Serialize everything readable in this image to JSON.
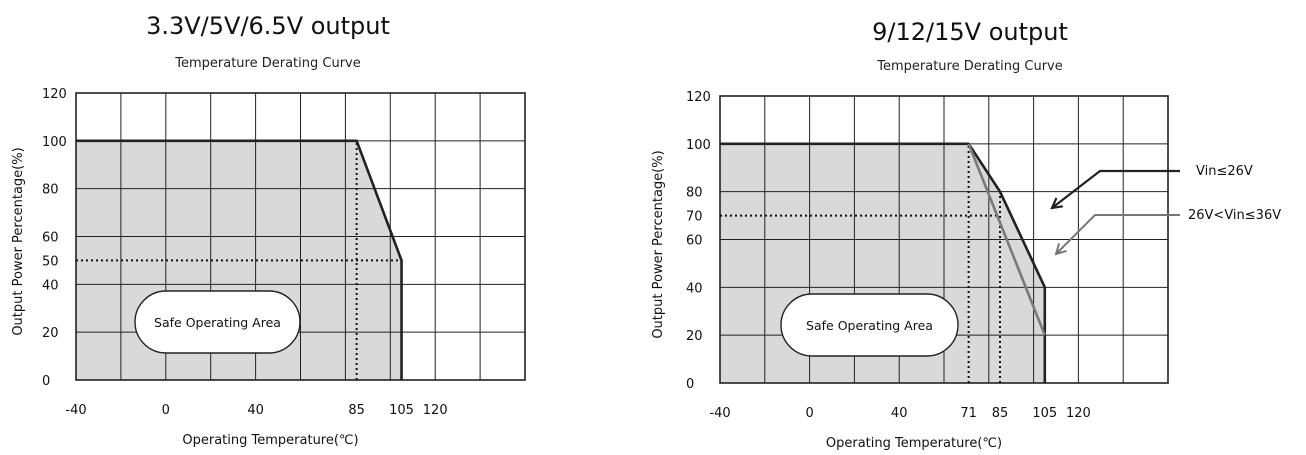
{
  "colors": {
    "area_fill": "#d9d9d9",
    "grid": "#222222",
    "curve_primary": "#222222",
    "curve_secondary": "#7a7a7a"
  },
  "chart_data": [
    {
      "type": "line",
      "heading": "3.3V/5V/6.5V output",
      "title": "Temperature Derating Curve",
      "xlabel": "Operating Temperature(℃)",
      "ylabel": "Output Power Percentage(%)",
      "x_grid": [
        -40,
        -20,
        0,
        20,
        40,
        60,
        80,
        100,
        120,
        140,
        160
      ],
      "x_ticks": [
        -40,
        0,
        40,
        85,
        105,
        120
      ],
      "y_ticks": [
        0,
        20,
        40,
        50,
        60,
        80,
        100,
        120
      ],
      "ylim": [
        0,
        120
      ],
      "grid": true,
      "area_label": "Safe Operating Area",
      "series": [
        {
          "points": [
            [
              -40,
              100
            ],
            [
              85,
              100
            ],
            [
              105,
              50
            ]
          ],
          "end_drop_to": 0,
          "style": "primary"
        }
      ],
      "guides": [
        {
          "type": "vertical",
          "x": 85,
          "from_y": 0,
          "to_y": 100
        },
        {
          "type": "horizontal",
          "y": 50,
          "from_x": -40,
          "to_x": 105
        }
      ]
    },
    {
      "type": "line",
      "heading": "9/12/15V output",
      "title": "Temperature Derating Curve",
      "xlabel": "Operating Temperature(℃)",
      "ylabel": "Output Power Percentage(%)",
      "x_grid": [
        -40,
        -20,
        0,
        20,
        40,
        60,
        80,
        100,
        120,
        140,
        160
      ],
      "x_ticks": [
        -40,
        0,
        40,
        71,
        85,
        105,
        120
      ],
      "y_ticks": [
        0,
        20,
        40,
        60,
        70,
        80,
        100,
        120
      ],
      "ylim": [
        0,
        120
      ],
      "grid": true,
      "area_label": "Safe Operating Area",
      "series": [
        {
          "name": "Vin≤26V",
          "points": [
            [
              -40,
              100
            ],
            [
              71,
              100
            ],
            [
              85,
              80
            ],
            [
              105,
              40
            ]
          ],
          "end_drop_to": 0,
          "style": "primary"
        },
        {
          "name": "26V<Vin≤36V",
          "points": [
            [
              71,
              100
            ],
            [
              105,
              20
            ]
          ],
          "style": "secondary"
        }
      ],
      "guides": [
        {
          "type": "vertical",
          "x": 71,
          "from_y": 0,
          "to_y": 100
        },
        {
          "type": "vertical",
          "x": 85,
          "from_y": 0,
          "to_y": 80
        },
        {
          "type": "horizontal",
          "y": 70,
          "from_x": -40,
          "to_x": 85
        }
      ]
    }
  ]
}
